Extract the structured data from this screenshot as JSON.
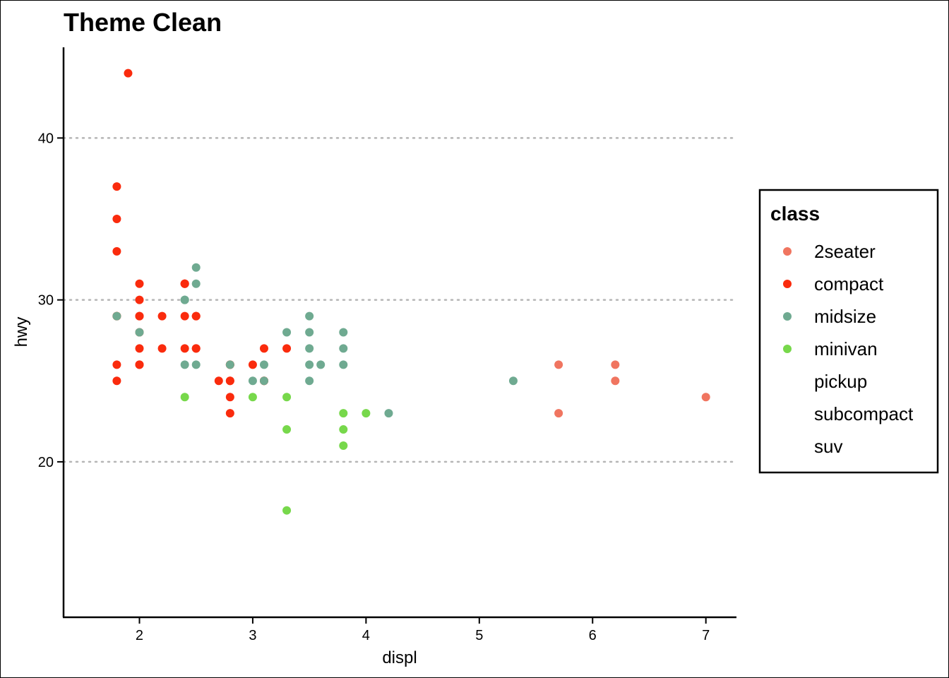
{
  "chart_data": {
    "type": "scatter",
    "title": "Theme Clean",
    "xlabel": "displ",
    "ylabel": "hwy",
    "xlim": [
      1.33,
      7.27
    ],
    "ylim": [
      10.4,
      45.6
    ],
    "x_ticks": [
      2,
      3,
      4,
      5,
      6,
      7
    ],
    "y_ticks": [
      20,
      30,
      40
    ],
    "grid": "horizontal-dotted",
    "legend": {
      "title": "class",
      "position": "right",
      "entries": [
        "2seater",
        "compact",
        "midsize",
        "minivan",
        "pickup",
        "subcompact",
        "suv"
      ]
    },
    "series": [
      {
        "name": "2seater",
        "color": "#F07560",
        "points": [
          [
            5.7,
            26
          ],
          [
            5.7,
            23
          ],
          [
            6.2,
            26
          ],
          [
            6.2,
            25
          ],
          [
            7.0,
            24
          ]
        ]
      },
      {
        "name": "compact",
        "color": "#FA2B0D",
        "points": [
          [
            1.8,
            29
          ],
          [
            1.8,
            29
          ],
          [
            2.0,
            31
          ],
          [
            2.0,
            30
          ],
          [
            2.8,
            26
          ],
          [
            2.8,
            26
          ],
          [
            3.1,
            27
          ],
          [
            1.8,
            26
          ],
          [
            1.8,
            25
          ],
          [
            2.0,
            28
          ],
          [
            2.0,
            29
          ],
          [
            2.8,
            25
          ],
          [
            2.8,
            25
          ],
          [
            3.1,
            25
          ],
          [
            3.1,
            25
          ],
          [
            2.2,
            27
          ],
          [
            2.2,
            29
          ],
          [
            2.5,
            27
          ],
          [
            2.5,
            29
          ],
          [
            2.0,
            26
          ],
          [
            2.0,
            29
          ],
          [
            2.7,
            25
          ],
          [
            2.8,
            24
          ],
          [
            2.8,
            23
          ],
          [
            3.0,
            26
          ],
          [
            1.9,
            44
          ],
          [
            1.8,
            37
          ],
          [
            1.8,
            35
          ],
          [
            1.8,
            33
          ],
          [
            2.5,
            29
          ],
          [
            2.5,
            27
          ],
          [
            2.4,
            31
          ],
          [
            2.4,
            31
          ],
          [
            2.4,
            29
          ],
          [
            2.4,
            27
          ],
          [
            3.3,
            27
          ],
          [
            2.0,
            27
          ],
          [
            2.0,
            26
          ],
          [
            2.4,
            31
          ]
        ]
      },
      {
        "name": "midsize",
        "color": "#6FAA91",
        "points": [
          [
            1.8,
            29
          ],
          [
            2.0,
            28
          ],
          [
            2.8,
            26
          ],
          [
            3.1,
            26
          ],
          [
            2.4,
            30
          ],
          [
            2.4,
            30
          ],
          [
            2.4,
            26
          ],
          [
            2.5,
            32
          ],
          [
            2.5,
            31
          ],
          [
            2.5,
            26
          ],
          [
            3.3,
            28
          ],
          [
            3.5,
            29
          ],
          [
            3.5,
            28
          ],
          [
            3.5,
            27
          ],
          [
            3.5,
            26
          ],
          [
            3.5,
            25
          ],
          [
            3.6,
            26
          ],
          [
            3.8,
            28
          ],
          [
            3.8,
            27
          ],
          [
            3.8,
            26
          ],
          [
            3.0,
            25
          ],
          [
            3.1,
            25
          ],
          [
            4.2,
            23
          ],
          [
            5.3,
            25
          ]
        ]
      },
      {
        "name": "minivan",
        "color": "#77D84B",
        "points": [
          [
            2.4,
            24
          ],
          [
            3.0,
            24
          ],
          [
            3.3,
            24
          ],
          [
            3.3,
            22
          ],
          [
            3.3,
            17
          ],
          [
            3.8,
            23
          ],
          [
            3.8,
            22
          ],
          [
            3.8,
            21
          ],
          [
            4.0,
            23
          ]
        ]
      },
      {
        "name": "pickup",
        "color": "#FFFFFF",
        "points": []
      },
      {
        "name": "subcompact",
        "color": "#FFFFFF",
        "points": []
      },
      {
        "name": "suv",
        "color": "#FFFFFF",
        "points": []
      }
    ]
  }
}
